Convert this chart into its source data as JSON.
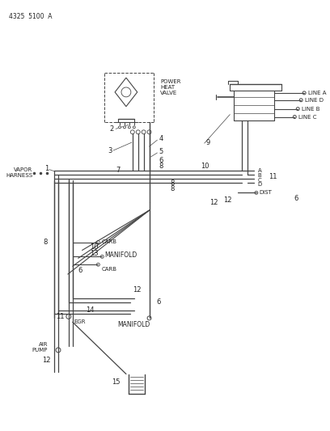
{
  "background_color": "#ffffff",
  "line_color": "#444444",
  "text_color": "#222222",
  "fig_width": 4.08,
  "fig_height": 5.33,
  "dpi": 100,
  "header": "4325  5100  A",
  "power_heat_valve_label": "POWER\nHEAT\nVALVE",
  "vapor_harness_label": "VAPOR\nHARNESS",
  "line_a": "LINE A",
  "line_b": "LINE B",
  "line_c": "LINE C",
  "line_d": "LINE D",
  "dist_label": "DIST",
  "egr_label": "EGR",
  "air_pump_label": "AIR\nPUMP",
  "carb_label": "CARB",
  "manifold_label": "MANIFOLD"
}
